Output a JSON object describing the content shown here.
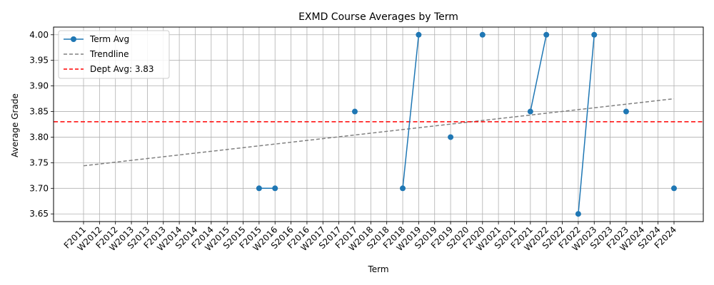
{
  "chart_data": {
    "type": "line",
    "title": "EXMD Course Averages by Term",
    "xlabel": "Term",
    "ylabel": "Average Grade",
    "categories": [
      "F2011",
      "W2012",
      "F2012",
      "W2013",
      "S2013",
      "F2013",
      "W2014",
      "S2014",
      "F2014",
      "W2015",
      "S2015",
      "F2015",
      "W2016",
      "S2016",
      "F2016",
      "W2017",
      "S2017",
      "F2017",
      "W2018",
      "S2018",
      "F2018",
      "W2019",
      "S2019",
      "F2019",
      "S2020",
      "F2020",
      "W2021",
      "S2021",
      "F2021",
      "W2022",
      "S2022",
      "F2022",
      "W2023",
      "S2023",
      "F2023",
      "W2024",
      "S2024",
      "F2024"
    ],
    "ylim": [
      3.635,
      4.015
    ],
    "yticks": [
      3.65,
      3.7,
      3.75,
      3.8,
      3.85,
      3.9,
      3.95,
      4.0
    ],
    "ytick_labels": [
      "3.65",
      "3.70",
      "3.75",
      "3.80",
      "3.85",
      "3.90",
      "3.95",
      "4.00"
    ],
    "grid": true,
    "legend_position": "top-left",
    "series": [
      {
        "name": "Term Avg",
        "color": "#1f77b4",
        "style": "solid-line-with-circle-markers",
        "values": [
          null,
          null,
          null,
          null,
          null,
          null,
          null,
          null,
          null,
          null,
          null,
          3.7,
          3.7,
          null,
          null,
          null,
          null,
          3.85,
          null,
          null,
          3.7,
          4.0,
          null,
          3.8,
          null,
          4.0,
          null,
          null,
          3.85,
          4.0,
          null,
          3.65,
          4.0,
          null,
          3.85,
          null,
          null,
          3.7
        ]
      },
      {
        "name": "Trendline",
        "color": "#808080",
        "style": "dashed",
        "start": 3.744,
        "end": 3.875
      },
      {
        "name": "Dept Avg: 3.83",
        "color": "#ff0000",
        "style": "dashed-horizontal",
        "value": 3.83
      }
    ]
  }
}
